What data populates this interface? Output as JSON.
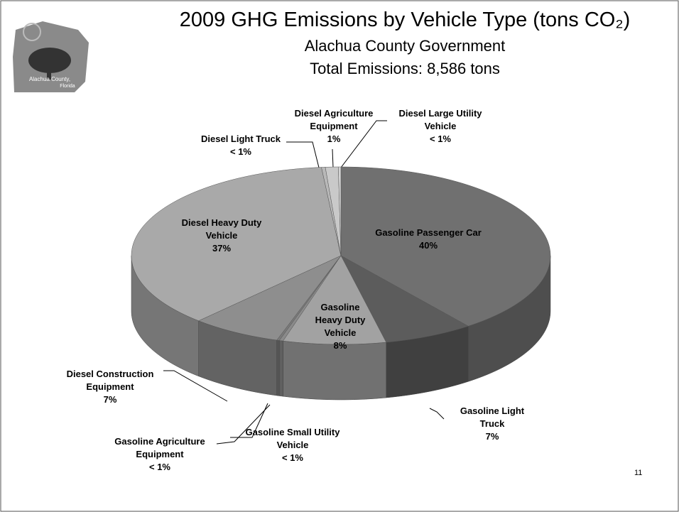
{
  "title_block": {
    "title": "2009 GHG Emissions by Vehicle Type (tons CO₂)",
    "subtitle": "Alachua County Government",
    "total": "Total Emissions: 8,586 tons"
  },
  "logo": {
    "line1": "Alachua County,",
    "line2": "Florida"
  },
  "slide_number": "11",
  "chart_data": {
    "type": "pie",
    "categories": [
      "Gasoline Passenger Car",
      "Gasoline Light Truck",
      "Gasoline Heavy Duty Vehicle",
      "Gasoline Small Utility Vehicle",
      "Gasoline Agriculture Equipment",
      "Diesel Construction Equipment",
      "Diesel Heavy Duty Vehicle",
      "Diesel Light Truck",
      "Diesel Agriculture Equipment",
      "Diesel Large Utility Vehicle"
    ],
    "values": [
      40,
      7,
      8,
      0.3,
      0.2,
      7,
      37,
      0.3,
      1,
      0.2
    ],
    "value_labels": [
      "40%",
      "7%",
      "8%",
      "< 1%",
      "< 1%",
      "7%",
      "37%",
      "< 1%",
      "1%",
      "< 1%"
    ],
    "colors": [
      "#707070",
      "#5c5c5c",
      "#a2a2a2",
      "#8a8a8a",
      "#7a7a7a",
      "#8e8e8e",
      "#a9a9a9",
      "#b8b8b8",
      "#c9c9c9",
      "#d3d3d3"
    ]
  }
}
